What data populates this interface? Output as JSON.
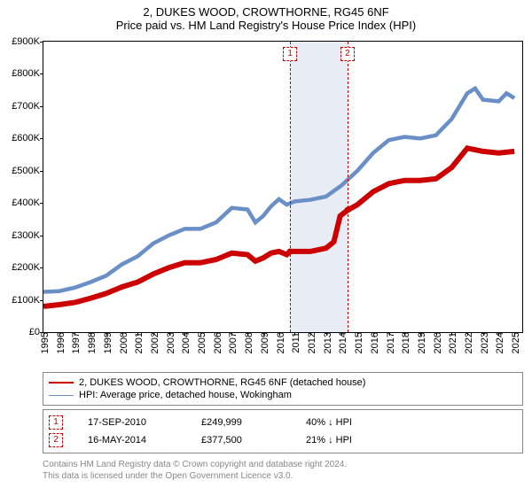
{
  "title_line1": "2, DUKES WOOD, CROWTHORNE, RG45 6NF",
  "title_line2": "Price paid vs. HM Land Registry's House Price Index (HPI)",
  "chart": {
    "type": "line",
    "background_color": "#ffffff",
    "band_color": "#e8ecf4",
    "x_min": 1995,
    "x_max": 2025.5,
    "y_min": 0,
    "y_max": 900000,
    "y_ticks": [
      0,
      100000,
      200000,
      300000,
      400000,
      500000,
      600000,
      700000,
      800000,
      900000
    ],
    "y_tick_labels": [
      "£0",
      "£100K",
      "£200K",
      "£300K",
      "£400K",
      "£500K",
      "£600K",
      "£700K",
      "£800K",
      "£900K"
    ],
    "x_ticks": [
      1995,
      1996,
      1997,
      1998,
      1999,
      2000,
      2001,
      2002,
      2003,
      2004,
      2005,
      2006,
      2007,
      2008,
      2009,
      2010,
      2011,
      2012,
      2013,
      2014,
      2015,
      2016,
      2017,
      2018,
      2019,
      2020,
      2021,
      2022,
      2023,
      2024,
      2025
    ],
    "band_start": 2010.71,
    "band_end": 2014.37,
    "series": [
      {
        "name": "price_paid",
        "color": "#cc0000",
        "width": 2,
        "points": [
          [
            1995,
            80000
          ],
          [
            1996,
            85000
          ],
          [
            1997,
            92000
          ],
          [
            1998,
            105000
          ],
          [
            1999,
            120000
          ],
          [
            2000,
            140000
          ],
          [
            2001,
            155000
          ],
          [
            2002,
            180000
          ],
          [
            2003,
            200000
          ],
          [
            2004,
            215000
          ],
          [
            2005,
            215000
          ],
          [
            2006,
            225000
          ],
          [
            2007,
            245000
          ],
          [
            2008,
            240000
          ],
          [
            2008.5,
            220000
          ],
          [
            2009,
            230000
          ],
          [
            2009.5,
            245000
          ],
          [
            2010,
            250000
          ],
          [
            2010.5,
            240000
          ],
          [
            2010.71,
            249999
          ],
          [
            2011,
            250000
          ],
          [
            2012,
            250000
          ],
          [
            2013,
            260000
          ],
          [
            2013.5,
            280000
          ],
          [
            2013.9,
            360000
          ],
          [
            2014.37,
            377500
          ],
          [
            2015,
            395000
          ],
          [
            2016,
            435000
          ],
          [
            2017,
            460000
          ],
          [
            2018,
            470000
          ],
          [
            2019,
            470000
          ],
          [
            2020,
            475000
          ],
          [
            2021,
            510000
          ],
          [
            2022,
            570000
          ],
          [
            2023,
            560000
          ],
          [
            2024,
            555000
          ],
          [
            2025,
            560000
          ]
        ]
      },
      {
        "name": "hpi",
        "color": "#6a8fc7",
        "width": 1.5,
        "points": [
          [
            1995,
            125000
          ],
          [
            1996,
            127000
          ],
          [
            1997,
            138000
          ],
          [
            1998,
            155000
          ],
          [
            1999,
            175000
          ],
          [
            2000,
            210000
          ],
          [
            2001,
            235000
          ],
          [
            2002,
            275000
          ],
          [
            2003,
            300000
          ],
          [
            2004,
            320000
          ],
          [
            2005,
            320000
          ],
          [
            2006,
            340000
          ],
          [
            2007,
            385000
          ],
          [
            2008,
            380000
          ],
          [
            2008.5,
            340000
          ],
          [
            2009,
            360000
          ],
          [
            2009.5,
            390000
          ],
          [
            2010,
            412000
          ],
          [
            2010.5,
            395000
          ],
          [
            2011,
            405000
          ],
          [
            2012,
            410000
          ],
          [
            2013,
            420000
          ],
          [
            2014,
            455000
          ],
          [
            2015,
            500000
          ],
          [
            2016,
            555000
          ],
          [
            2017,
            595000
          ],
          [
            2018,
            605000
          ],
          [
            2019,
            600000
          ],
          [
            2020,
            610000
          ],
          [
            2021,
            660000
          ],
          [
            2022,
            740000
          ],
          [
            2022.5,
            755000
          ],
          [
            2023,
            720000
          ],
          [
            2024,
            715000
          ],
          [
            2024.5,
            740000
          ],
          [
            2025,
            725000
          ]
        ]
      }
    ],
    "sale_points": [
      {
        "x": 2010.71,
        "y": 249999
      },
      {
        "x": 2014.37,
        "y": 377500
      }
    ],
    "marker_boxes": [
      {
        "x": 2010.71,
        "label": "1"
      },
      {
        "x": 2014.37,
        "label": "2"
      }
    ]
  },
  "legend": {
    "items": [
      {
        "color": "#cc0000",
        "width": 2,
        "label": "2, DUKES WOOD, CROWTHORNE, RG45 6NF (detached house)"
      },
      {
        "color": "#6a8fc7",
        "width": 1.5,
        "label": "HPI: Average price, detached house, Wokingham"
      }
    ]
  },
  "transactions": [
    {
      "n": "1",
      "date": "17-SEP-2010",
      "price": "£249,999",
      "hpi": "40% ↓ HPI"
    },
    {
      "n": "2",
      "date": "16-MAY-2014",
      "price": "£377,500",
      "hpi": "21% ↓ HPI"
    }
  ],
  "footnote_line1": "Contains HM Land Registry data © Crown copyright and database right 2024.",
  "footnote_line2": "This data is licensed under the Open Government Licence v3.0."
}
